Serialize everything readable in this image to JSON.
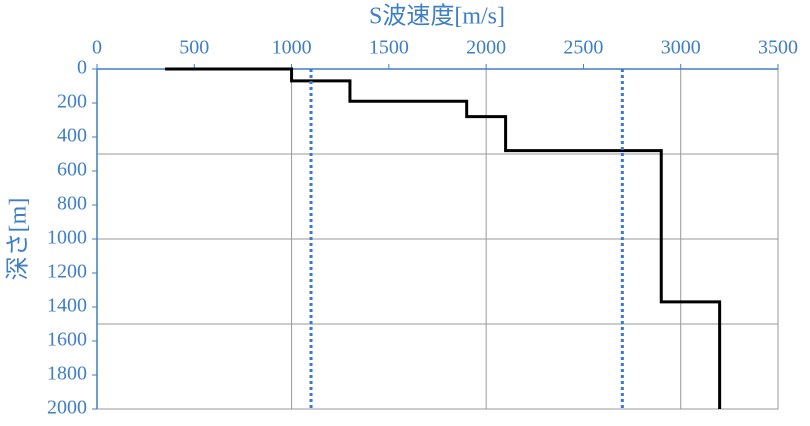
{
  "chart_data": {
    "type": "line",
    "title": "S波速度[m/s]",
    "y_label": "深さ[m]",
    "xlim": [
      0,
      3500
    ],
    "xticks": [
      0,
      500,
      1000,
      1500,
      2000,
      2500,
      3000,
      3500
    ],
    "ylim": [
      0,
      2000
    ],
    "yticks": [
      0,
      200,
      400,
      600,
      800,
      1000,
      1200,
      1400,
      1600,
      1800,
      2000
    ],
    "y_inverted": true,
    "x_axis_position": "top",
    "xgrid": [
      1000,
      2000,
      3000
    ],
    "ygrid": [
      500,
      1000,
      1500
    ],
    "axis_color": "#3f7fc6",
    "series": [
      {
        "color": "#000000",
        "style": "solid",
        "x": [
          350,
          1000,
          1000,
          1300,
          1300,
          1900,
          1900,
          2100,
          2100,
          2900,
          2900,
          3200,
          3200
        ],
        "y": [
          0,
          0,
          70,
          70,
          190,
          190,
          280,
          280,
          480,
          480,
          1370,
          1370,
          2000
        ]
      },
      {
        "color": "#3a78d6",
        "style": "dotted",
        "x": [
          1100,
          1100
        ],
        "y": [
          0,
          2000
        ]
      },
      {
        "color": "#3a78d6",
        "style": "dotted",
        "x": [
          2700,
          2700
        ],
        "y": [
          0,
          2000
        ]
      }
    ]
  }
}
